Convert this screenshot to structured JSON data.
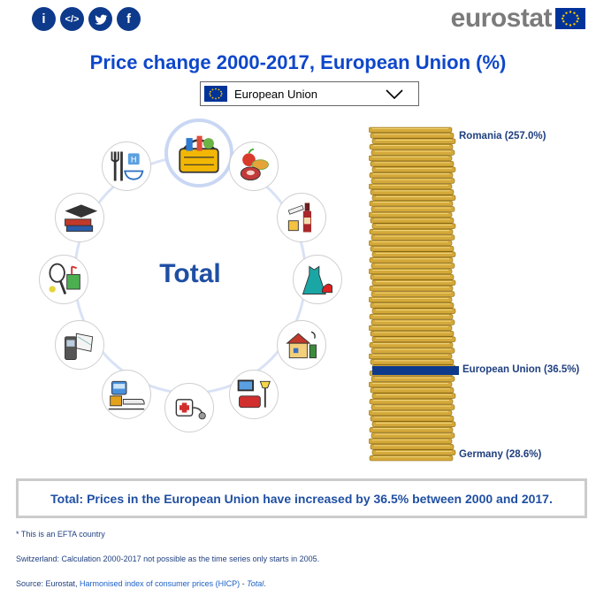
{
  "header": {
    "share": [
      {
        "name": "info-icon",
        "glyph": "i"
      },
      {
        "name": "embed-icon",
        "glyph": "</>"
      },
      {
        "name": "twitter-icon",
        "glyph": "t"
      },
      {
        "name": "facebook-icon",
        "glyph": "f"
      }
    ],
    "logo_text": "eurostat"
  },
  "title": "Price change 2000-2017, European Union (%)",
  "country_select": {
    "selected": "European Union"
  },
  "wheel": {
    "center_label": "Total",
    "categories": [
      {
        "name": "category-total",
        "icon": "shopping-basket-icon"
      },
      {
        "name": "category-food",
        "icon": "food-icon"
      },
      {
        "name": "category-alcohol-tobacco",
        "icon": "alcohol-tobacco-icon"
      },
      {
        "name": "category-clothing",
        "icon": "clothing-icon"
      },
      {
        "name": "category-housing",
        "icon": "house-icon"
      },
      {
        "name": "category-furnishings",
        "icon": "furnishings-icon"
      },
      {
        "name": "category-health",
        "icon": "stethoscope-icon"
      },
      {
        "name": "category-transport",
        "icon": "transport-icon"
      },
      {
        "name": "category-communication",
        "icon": "telephone-icon"
      },
      {
        "name": "category-recreation",
        "icon": "recreation-icon"
      },
      {
        "name": "category-education",
        "icon": "education-icon"
      },
      {
        "name": "category-restaurants-hotels",
        "icon": "restaurant-hotel-icon"
      }
    ]
  },
  "coin_stack": {
    "top_label": "Romania (257.0%)",
    "highlight_label": "European Union (36.5%)",
    "bottom_label": "Germany (28.6%)",
    "highlight_color": "#0e3a8c",
    "coin_color": "#d4a93a"
  },
  "summary": "Total: Prices in the European Union have increased by 36.5% between 2000 and 2017.",
  "notes": {
    "efta": "* This is an EFTA country",
    "switzerland": "Switzerland: Calculation 2000-2017 not possible as the time series only starts in 2005.",
    "source_prefix": "Source: Eurostat, ",
    "source_link": "Harmonised index of consumer prices (HICP)",
    "source_sep": " - ",
    "source_dataset": "Total",
    "source_end": "."
  }
}
